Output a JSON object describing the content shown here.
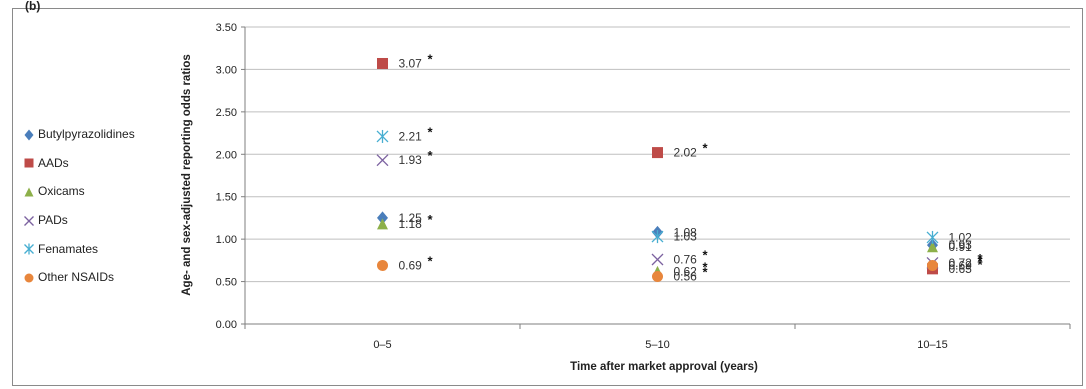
{
  "panel_label": "(b)",
  "chart_data": {
    "type": "scatter",
    "xlabel": "Time after market approval (years)",
    "ylabel": "Age- and sex-adjusted reporting odds ratios",
    "categories": [
      "0–5",
      "5–10",
      "10–15"
    ],
    "ylim": [
      0,
      3.5
    ],
    "yticks": [
      "0.00",
      "0.50",
      "1.00",
      "1.50",
      "2.00",
      "2.50",
      "3.00",
      "3.50"
    ],
    "grid": true,
    "legend_position": "left",
    "series": [
      {
        "name": "Butylpyrazolidines",
        "marker": "diamond",
        "color": "#4a7ebb",
        "values": [
          1.25,
          1.08,
          0.93
        ],
        "labels": [
          "1.25",
          "1.08",
          "0.93"
        ],
        "significant": [
          false,
          false,
          false
        ]
      },
      {
        "name": "AADs",
        "marker": "square",
        "color": "#be4b48",
        "values": [
          3.07,
          2.02,
          0.65
        ],
        "labels": [
          "3.07",
          "2.02",
          "0.65"
        ],
        "significant": [
          true,
          true,
          true
        ]
      },
      {
        "name": "Oxicams",
        "marker": "triangle",
        "color": "#8db04a",
        "values": [
          1.18,
          0.62,
          0.91
        ],
        "labels": [
          "1.18",
          "0.62",
          "0.91"
        ],
        "significant": [
          true,
          true,
          false
        ]
      },
      {
        "name": "PADs",
        "marker": "x",
        "color": "#7c62a0",
        "values": [
          1.93,
          0.76,
          0.72
        ],
        "labels": [
          "1.93",
          "0.76",
          "0.72"
        ],
        "significant": [
          true,
          true,
          true
        ]
      },
      {
        "name": "Fenamates",
        "marker": "asterisk",
        "color": "#47aed1",
        "values": [
          2.21,
          1.03,
          1.02
        ],
        "labels": [
          "2.21",
          "1.03",
          "1.02"
        ],
        "significant": [
          true,
          false,
          false
        ]
      },
      {
        "name": "Other NSAIDs",
        "marker": "circle",
        "color": "#e8863c",
        "values": [
          0.69,
          0.56,
          0.69
        ],
        "labels": [
          "0.69",
          "0.56",
          "0.69"
        ],
        "significant": [
          true,
          true,
          true
        ]
      }
    ],
    "significance_mark": "*"
  }
}
